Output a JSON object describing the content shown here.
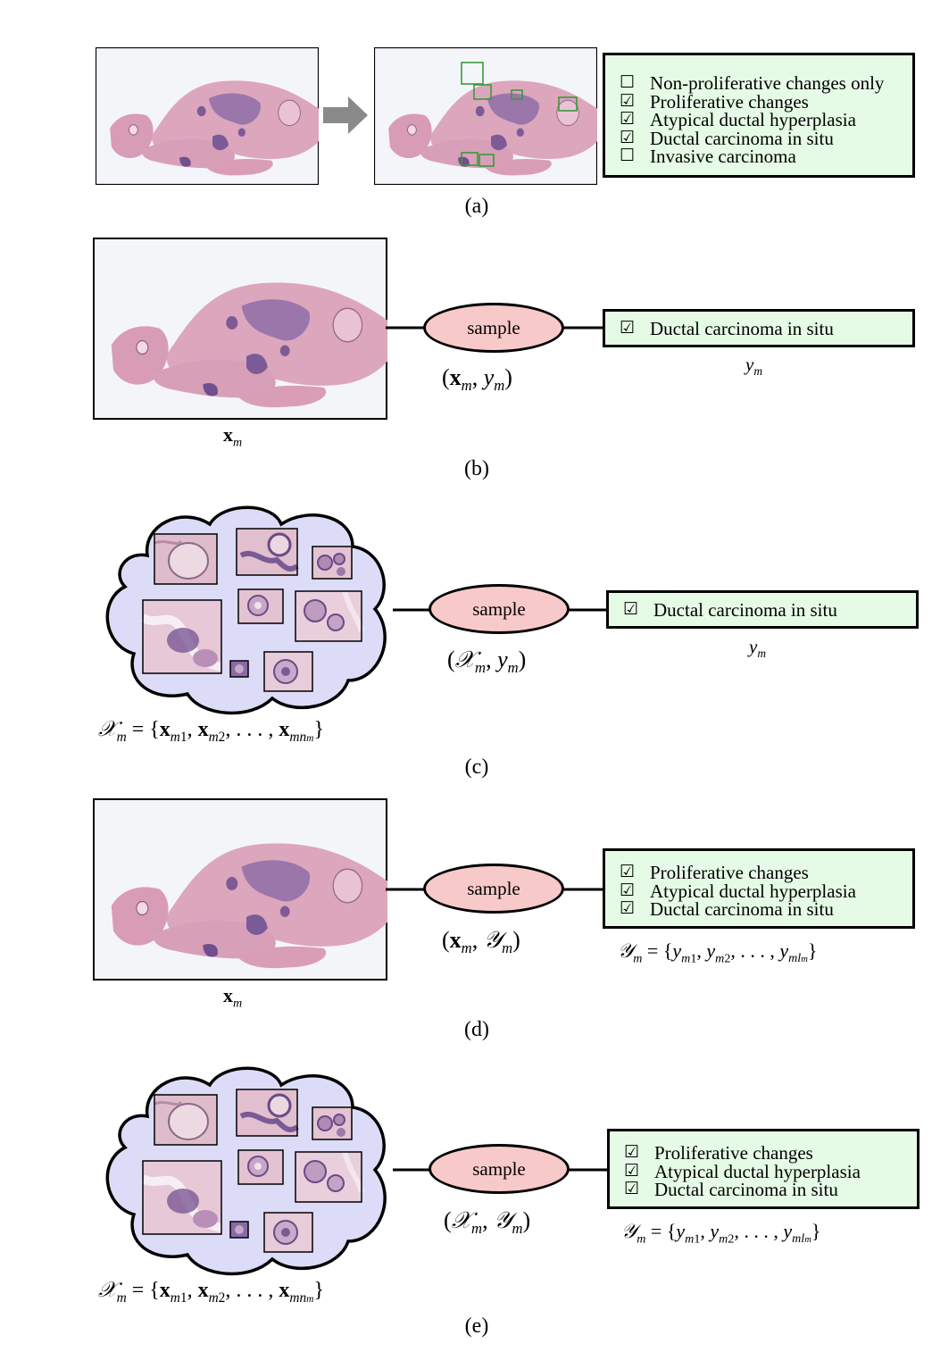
{
  "panels": {
    "a": {
      "caption": "(a)",
      "options": [
        {
          "mark": "☐",
          "text": "Non-proliferative changes only"
        },
        {
          "mark": "☑",
          "text": "Proliferative changes"
        },
        {
          "mark": "☑",
          "text": "Atypical ductal hyperplasia"
        },
        {
          "mark": "☑",
          "text": "Ductal carcinoma in situ"
        },
        {
          "mark": "☐",
          "text": "Invasive carcinoma"
        }
      ]
    },
    "b": {
      "caption": "(b)",
      "sample": "sample",
      "label_mark": "☑",
      "label_text": "Ductal carcinoma in situ"
    },
    "c": {
      "caption": "(c)",
      "sample": "sample",
      "label_mark": "☑",
      "label_text": "Ductal carcinoma in situ"
    },
    "d": {
      "caption": "(d)",
      "sample": "sample",
      "labels": [
        {
          "mark": "☑",
          "text": "Proliferative changes"
        },
        {
          "mark": "☑",
          "text": "Atypical ductal hyperplasia"
        },
        {
          "mark": "☑",
          "text": "Ductal carcinoma in situ"
        }
      ]
    },
    "e": {
      "caption": "(e)",
      "sample": "sample",
      "labels": [
        {
          "mark": "☑",
          "text": "Proliferative changes"
        },
        {
          "mark": "☑",
          "text": "Atypical ductal hyperplasia"
        },
        {
          "mark": "☑",
          "text": "Ductal carcinoma in situ"
        }
      ]
    }
  },
  "colors": {
    "label_box_fill": "#e6fbe6",
    "sample_fill": "#f8c9c9",
    "cloud_fill": "#dcdcf8",
    "tissue_pink": "#d9a2b8",
    "tissue_purple": "#7a5a96",
    "roi_green": "#3a9a3a",
    "arrow_gray": "#8a8a8a"
  }
}
